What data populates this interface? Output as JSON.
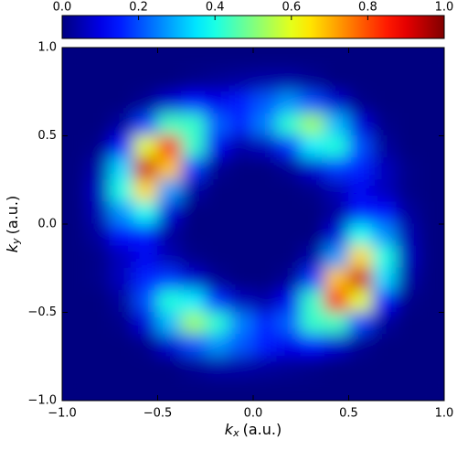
{
  "chart_data": {
    "type": "heatmap",
    "colormap": "jet",
    "x_label": {
      "symbol": "k",
      "subscript": "x",
      "unit": "(a.u.)"
    },
    "y_label": {
      "symbol": "k",
      "subscript": "y",
      "unit": "(a.u.)"
    },
    "xlim": [
      -1.0,
      1.0
    ],
    "ylim": [
      -1.0,
      1.0
    ],
    "xticks": [
      {
        "value": -1.0,
        "label": "−1.0"
      },
      {
        "value": -0.5,
        "label": "−0.5"
      },
      {
        "value": 0,
        "label": "0.0"
      },
      {
        "value": 0.5,
        "label": "0.5"
      },
      {
        "value": 1.0,
        "label": "1.0"
      }
    ],
    "yticks": [
      {
        "value": -1.0,
        "label": "−1.0"
      },
      {
        "value": -0.5,
        "label": "−0.5"
      },
      {
        "value": 0,
        "label": "0.0"
      },
      {
        "value": 0.5,
        "label": "0.5"
      },
      {
        "value": 1.0,
        "label": "1.0"
      }
    ],
    "colorbar": {
      "position": "top",
      "zlim": [
        0.0,
        1.0
      ],
      "ticks": [
        {
          "value": 0,
          "label": "0.0"
        },
        {
          "value": 0.2,
          "label": "0.2"
        },
        {
          "value": 0.4,
          "label": "0.4"
        },
        {
          "value": 0.6,
          "label": "0.6"
        },
        {
          "value": 0.8,
          "label": "0.8"
        },
        {
          "value": 1.0,
          "label": "1.0"
        }
      ]
    },
    "z": [
      [
        0,
        0,
        0,
        0,
        0,
        0,
        0,
        0,
        0,
        0,
        0,
        0,
        0,
        0,
        0,
        0
      ],
      [
        0,
        0,
        0,
        0,
        0,
        0.01,
        0.02,
        0.03,
        0.04,
        0.04,
        0.02,
        0,
        0,
        0,
        0,
        0
      ],
      [
        0,
        0,
        0,
        0.02,
        0.08,
        0.14,
        0.11,
        0.15,
        0.21,
        0.27,
        0.2,
        0.08,
        0.01,
        0,
        0,
        0
      ],
      [
        0,
        0,
        0.03,
        0.19,
        0.44,
        0.43,
        0.22,
        0.16,
        0.25,
        0.42,
        0.53,
        0.31,
        0.09,
        0.01,
        0,
        0
      ],
      [
        0,
        0.01,
        0.14,
        0.6,
        0.88,
        0.43,
        0.11,
        0.04,
        0.06,
        0.17,
        0.36,
        0.41,
        0.2,
        0.03,
        0,
        0
      ],
      [
        0,
        0.04,
        0.34,
        0.92,
        0.68,
        0.18,
        0.02,
        0,
        0,
        0.02,
        0.08,
        0.18,
        0.16,
        0.06,
        0.01,
        0
      ],
      [
        0,
        0.06,
        0.4,
        0.66,
        0.28,
        0.04,
        0,
        0,
        0,
        0,
        0.01,
        0.05,
        0.11,
        0.06,
        0.01,
        0
      ],
      [
        0,
        0.05,
        0.27,
        0.39,
        0.09,
        0,
        0,
        0,
        0,
        0,
        0,
        0.03,
        0.15,
        0.14,
        0.03,
        0
      ],
      [
        0,
        0.03,
        0.14,
        0.15,
        0.03,
        0,
        0,
        0,
        0,
        0,
        0,
        0.09,
        0.39,
        0.27,
        0.05,
        0
      ],
      [
        0,
        0.01,
        0.06,
        0.11,
        0.05,
        0.01,
        0,
        0,
        0,
        0,
        0.04,
        0.28,
        0.66,
        0.4,
        0.06,
        0
      ],
      [
        0,
        0.01,
        0.06,
        0.16,
        0.18,
        0.08,
        0.02,
        0,
        0,
        0.02,
        0.18,
        0.68,
        0.92,
        0.34,
        0.04,
        0
      ],
      [
        0,
        0,
        0.03,
        0.2,
        0.41,
        0.36,
        0.17,
        0.06,
        0.04,
        0.11,
        0.43,
        0.88,
        0.6,
        0.14,
        0.01,
        0
      ],
      [
        0,
        0,
        0.01,
        0.09,
        0.31,
        0.53,
        0.42,
        0.25,
        0.16,
        0.22,
        0.43,
        0.44,
        0.19,
        0.03,
        0,
        0
      ],
      [
        0,
        0,
        0,
        0.01,
        0.08,
        0.2,
        0.27,
        0.21,
        0.15,
        0.11,
        0.14,
        0.08,
        0.02,
        0,
        0,
        0
      ],
      [
        0,
        0,
        0,
        0,
        0,
        0.02,
        0.04,
        0.04,
        0.03,
        0.02,
        0.01,
        0,
        0,
        0,
        0,
        0
      ],
      [
        0,
        0,
        0,
        0,
        0,
        0,
        0,
        0,
        0,
        0,
        0,
        0,
        0,
        0,
        0,
        0
      ]
    ]
  }
}
